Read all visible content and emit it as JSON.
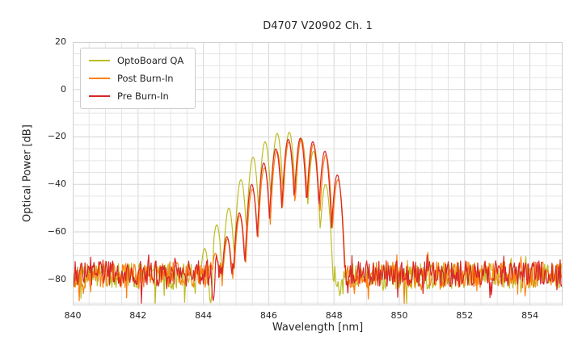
{
  "chart_data": {
    "type": "line",
    "title": "D4707 V20902 Ch. 1",
    "xlabel": "Wavelength [nm]",
    "ylabel": "Optical Power [dB]",
    "xlim": [
      840,
      855
    ],
    "ylim": [
      -91,
      20
    ],
    "xticks": [
      840,
      842,
      844,
      846,
      848,
      850,
      852,
      854
    ],
    "xtick_labels": [
      "840",
      "842",
      "844",
      "846",
      "848",
      "850",
      "852",
      "854"
    ],
    "yticks": [
      20,
      0,
      -20,
      -40,
      -60,
      -80
    ],
    "ytick_labels": [
      "20",
      "0",
      "−20",
      "−40",
      "−60",
      "−80"
    ],
    "grid": {
      "major": true,
      "minor": true,
      "x_minor_step": 0.5,
      "y_minor_step": 5
    },
    "legend_position": "upper-left",
    "sample_step_nm": 0.025,
    "dip_sharpness": 3000,
    "series": [
      {
        "name": "OptoBoard QA",
        "color": "#bcbd22",
        "noise_floor_db": -78.6,
        "noise_jitter_db": 11,
        "noise_spike_prob": 0.06,
        "noise_spike_db": 9,
        "noise_up_spike_db": 5,
        "noise_seed": 11,
        "mode_sharpness": 770,
        "modes": [
          [
            844.04,
            -67
          ],
          [
            844.41,
            -57
          ],
          [
            844.78,
            -50
          ],
          [
            845.15,
            -38
          ],
          [
            845.52,
            -28.5
          ],
          [
            845.89,
            -22
          ],
          [
            846.26,
            -18.5
          ],
          [
            846.63,
            -18
          ],
          [
            847.0,
            -20.5
          ],
          [
            847.37,
            -26
          ],
          [
            847.74,
            -40
          ]
        ],
        "dips": [
          [
            844.22,
            -90
          ],
          [
            848.18,
            -87
          ]
        ]
      },
      {
        "name": "Post Burn-In",
        "color": "#ff7f0e",
        "noise_floor_db": -78.0,
        "noise_jitter_db": 11,
        "noise_spike_prob": 0.06,
        "noise_spike_db": 9,
        "noise_up_spike_db": 5,
        "noise_seed": 22,
        "mode_sharpness": 770,
        "modes": [
          [
            844.37,
            -69
          ],
          [
            844.74,
            -63
          ],
          [
            845.12,
            -53
          ],
          [
            845.5,
            -42
          ],
          [
            845.87,
            -33
          ],
          [
            846.25,
            -26
          ],
          [
            846.62,
            -22
          ],
          [
            847.0,
            -21
          ],
          [
            847.37,
            -23
          ],
          [
            847.75,
            -27.5
          ],
          [
            848.12,
            -38
          ]
        ],
        "dips": []
      },
      {
        "name": "Pre Burn-In",
        "color": "#d62728",
        "noise_floor_db": -77.6,
        "noise_jitter_db": 11,
        "noise_spike_prob": 0.06,
        "noise_spike_db": 9,
        "noise_up_spike_db": 5,
        "noise_seed": 33,
        "mode_sharpness": 770,
        "modes": [
          [
            844.35,
            -68
          ],
          [
            844.72,
            -62
          ],
          [
            845.1,
            -52
          ],
          [
            845.48,
            -40
          ],
          [
            845.85,
            -31
          ],
          [
            846.22,
            -25
          ],
          [
            846.6,
            -21
          ],
          [
            846.97,
            -20.5
          ],
          [
            847.35,
            -22
          ],
          [
            847.72,
            -26
          ],
          [
            848.1,
            -36
          ]
        ],
        "dips": [
          [
            844.3,
            -89
          ]
        ]
      }
    ]
  }
}
